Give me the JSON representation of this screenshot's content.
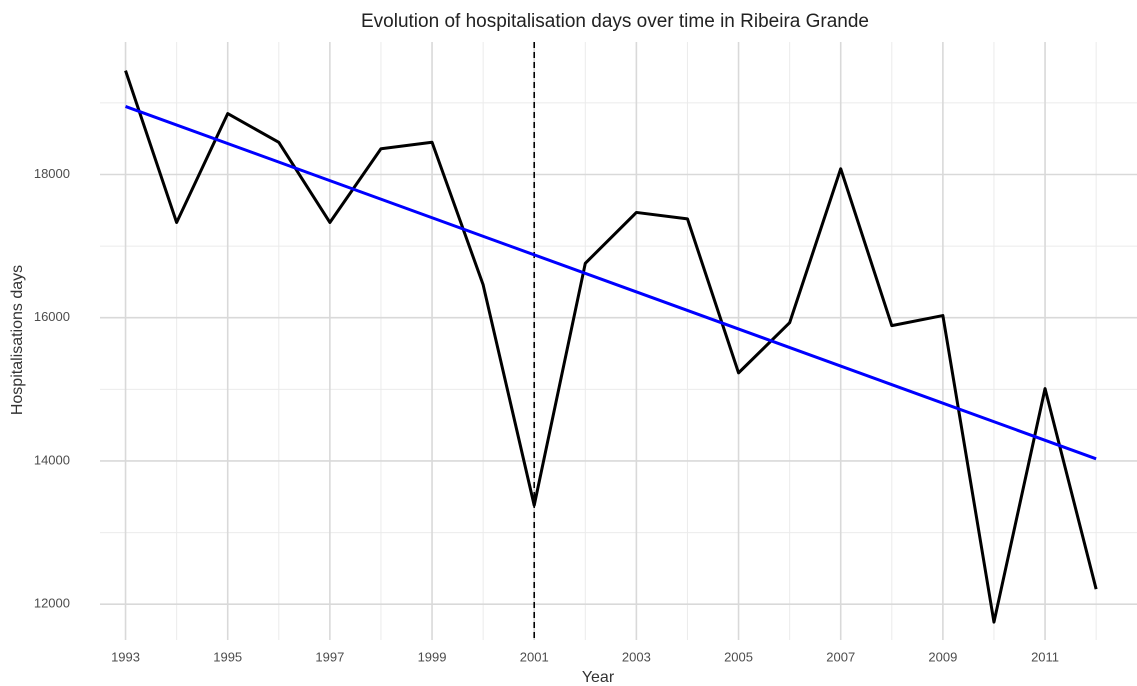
{
  "chart_data": {
    "type": "line",
    "title": "Evolution of hospitalisation days over time in Ribeira Grande",
    "x_label": "Year",
    "y_label": "Hospitalisations days",
    "x": [
      1993,
      1994,
      1995,
      1996,
      1997,
      1998,
      1999,
      2000,
      2001,
      2002,
      2003,
      2004,
      2005,
      2006,
      2007,
      2008,
      2009,
      2010,
      2011,
      2012
    ],
    "series": [
      {
        "color": "#000000",
        "values": [
          19450,
          17330,
          18850,
          18450,
          17330,
          18360,
          18450,
          16460,
          13380,
          16760,
          17470,
          17380,
          15230,
          15930,
          18080,
          15890,
          16030,
          11750,
          15010,
          12210
        ]
      }
    ],
    "trend": {
      "color": "#0000ff",
      "x": [
        1993,
        2012
      ],
      "values": [
        18950,
        14030
      ]
    },
    "vline": 2001,
    "xlim": [
      1992.5,
      2012.8
    ],
    "ylim": [
      11500,
      19850
    ],
    "xticks": [
      1993,
      1995,
      1997,
      1999,
      2001,
      2003,
      2005,
      2007,
      2009,
      2011
    ],
    "yticks": [
      12000,
      14000,
      16000,
      18000
    ],
    "grid": true
  }
}
